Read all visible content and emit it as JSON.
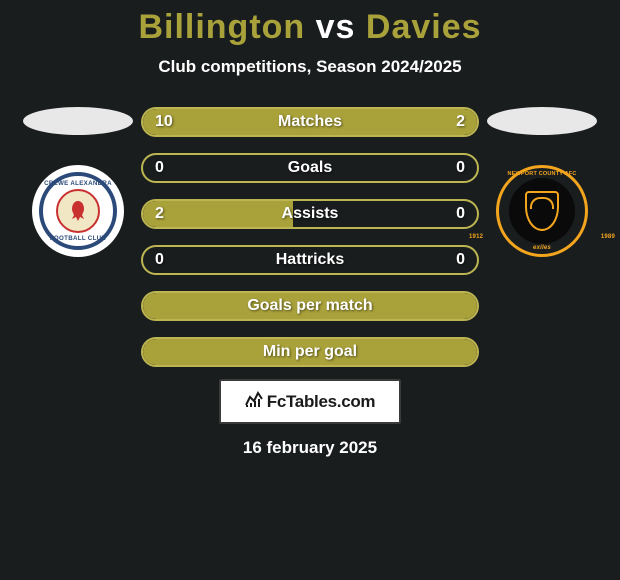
{
  "title": {
    "player1": "Billington",
    "vs": "vs",
    "player2": "Davies",
    "player1_color": "#a9a13a",
    "vs_color": "#ffffff",
    "player2_color": "#a9a13a"
  },
  "subtitle": "Club competitions, Season 2024/2025",
  "colors": {
    "accent": "#a9a13a",
    "accent_border": "#bdb552",
    "background": "#1a1d1e",
    "text": "#ffffff"
  },
  "badges": {
    "left": {
      "name": "crewe-alexandra-badge",
      "outer_text_top": "CREWE ALEXANDRA",
      "outer_text_bottom": "FOOTBALL CLUB",
      "ring_color": "#2b4a7a",
      "center_bg": "#f2e7c4",
      "center_border": "#c93030"
    },
    "right": {
      "name": "newport-county-badge",
      "outer_text_top": "NEWPORT COUNTY AFC",
      "year_left": "1912",
      "year_right": "1989",
      "exiles": "exiles",
      "ring_color": "#f3a51e",
      "bg": "#0a0a0a"
    }
  },
  "stats": [
    {
      "label": "Matches",
      "left_val": "10",
      "right_val": "2",
      "left_pct": 80,
      "right_pct": 20,
      "show_fill": true
    },
    {
      "label": "Goals",
      "left_val": "0",
      "right_val": "0",
      "left_pct": 0,
      "right_pct": 0,
      "show_fill": false
    },
    {
      "label": "Assists",
      "left_val": "2",
      "right_val": "0",
      "left_pct": 45,
      "right_pct": 0,
      "show_fill": true
    },
    {
      "label": "Hattricks",
      "left_val": "0",
      "right_val": "0",
      "left_pct": 0,
      "right_pct": 0,
      "show_fill": false
    },
    {
      "label": "Goals per match",
      "left_val": "",
      "right_val": "",
      "left_pct": 100,
      "right_pct": 0,
      "show_fill": true,
      "full": true
    },
    {
      "label": "Min per goal",
      "left_val": "",
      "right_val": "",
      "left_pct": 100,
      "right_pct": 0,
      "show_fill": true,
      "full": true
    }
  ],
  "branding": {
    "icon_glyph": "📊",
    "text": "FcTables.com"
  },
  "date": "16 february 2025"
}
